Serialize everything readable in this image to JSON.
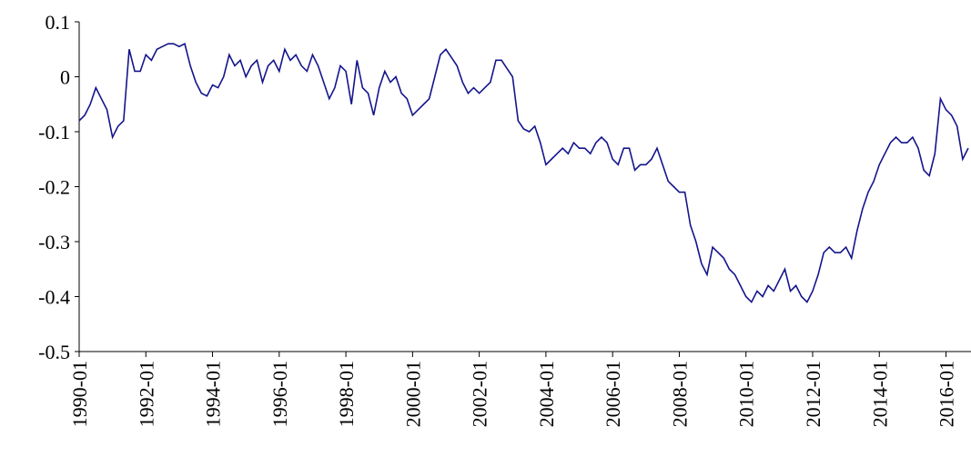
{
  "chart_data": {
    "type": "line",
    "x": [
      "1990-01",
      "1990-03",
      "1990-05",
      "1990-07",
      "1990-09",
      "1990-11",
      "1991-01",
      "1991-03",
      "1991-05",
      "1991-07",
      "1991-09",
      "1991-11",
      "1992-01",
      "1992-03",
      "1992-05",
      "1992-07",
      "1992-09",
      "1992-11",
      "1993-01",
      "1993-03",
      "1993-05",
      "1993-07",
      "1993-09",
      "1993-11",
      "1994-01",
      "1994-03",
      "1994-05",
      "1994-07",
      "1994-09",
      "1994-11",
      "1995-01",
      "1995-03",
      "1995-05",
      "1995-07",
      "1995-09",
      "1995-11",
      "1996-01",
      "1996-03",
      "1996-05",
      "1996-07",
      "1996-09",
      "1996-11",
      "1997-01",
      "1997-03",
      "1997-05",
      "1997-07",
      "1997-09",
      "1997-11",
      "1998-01",
      "1998-03",
      "1998-05",
      "1998-07",
      "1998-09",
      "1998-11",
      "1999-01",
      "1999-03",
      "1999-05",
      "1999-07",
      "1999-09",
      "1999-11",
      "2000-01",
      "2000-03",
      "2000-05",
      "2000-07",
      "2000-09",
      "2000-11",
      "2001-01",
      "2001-03",
      "2001-05",
      "2001-07",
      "2001-09",
      "2001-11",
      "2002-01",
      "2002-03",
      "2002-05",
      "2002-07",
      "2002-09",
      "2002-11",
      "2003-01",
      "2003-03",
      "2003-05",
      "2003-07",
      "2003-09",
      "2003-11",
      "2004-01",
      "2004-03",
      "2004-05",
      "2004-07",
      "2004-09",
      "2004-11",
      "2005-01",
      "2005-03",
      "2005-05",
      "2005-07",
      "2005-09",
      "2005-11",
      "2006-01",
      "2006-03",
      "2006-05",
      "2006-07",
      "2006-09",
      "2006-11",
      "2007-01",
      "2007-03",
      "2007-05",
      "2007-07",
      "2007-09",
      "2007-11",
      "2008-01",
      "2008-03",
      "2008-05",
      "2008-07",
      "2008-09",
      "2008-11",
      "2009-01",
      "2009-03",
      "2009-05",
      "2009-07",
      "2009-09",
      "2009-11",
      "2010-01",
      "2010-03",
      "2010-05",
      "2010-07",
      "2010-09",
      "2010-11",
      "2011-01",
      "2011-03",
      "2011-05",
      "2011-07",
      "2011-09",
      "2011-11",
      "2012-01",
      "2012-03",
      "2012-05",
      "2012-07",
      "2012-09",
      "2012-11",
      "2013-01",
      "2013-03",
      "2013-05",
      "2013-07",
      "2013-09",
      "2013-11",
      "2014-01",
      "2014-03",
      "2014-05",
      "2014-07",
      "2014-09",
      "2014-11",
      "2015-01",
      "2015-03",
      "2015-05",
      "2015-07",
      "2015-09",
      "2015-11",
      "2016-01",
      "2016-03",
      "2016-05",
      "2016-07",
      "2016-09"
    ],
    "series": [
      {
        "color": "#14148c",
        "values": [
          -0.08,
          -0.07,
          -0.05,
          -0.02,
          -0.04,
          -0.06,
          -0.11,
          -0.09,
          -0.08,
          0.05,
          0.01,
          0.01,
          0.04,
          0.03,
          0.05,
          0.055,
          0.06,
          0.06,
          0.055,
          0.06,
          0.02,
          -0.01,
          -0.03,
          -0.035,
          -0.015,
          -0.02,
          0.0,
          0.04,
          0.02,
          0.03,
          0.0,
          0.02,
          0.03,
          -0.01,
          0.02,
          0.03,
          0.01,
          0.05,
          0.03,
          0.04,
          0.02,
          0.01,
          0.04,
          0.02,
          -0.01,
          -0.04,
          -0.02,
          0.02,
          0.01,
          -0.05,
          0.03,
          -0.02,
          -0.03,
          -0.07,
          -0.02,
          0.01,
          -0.01,
          0.0,
          -0.03,
          -0.04,
          -0.07,
          -0.06,
          -0.05,
          -0.04,
          0.0,
          0.04,
          0.05,
          0.035,
          0.02,
          -0.01,
          -0.03,
          -0.02,
          -0.03,
          -0.02,
          -0.01,
          0.03,
          0.03,
          0.015,
          0.0,
          -0.08,
          -0.095,
          -0.1,
          -0.09,
          -0.12,
          -0.16,
          -0.15,
          -0.14,
          -0.13,
          -0.14,
          -0.12,
          -0.13,
          -0.13,
          -0.14,
          -0.12,
          -0.11,
          -0.12,
          -0.15,
          -0.16,
          -0.13,
          -0.13,
          -0.17,
          -0.16,
          -0.16,
          -0.15,
          -0.13,
          -0.16,
          -0.19,
          -0.2,
          -0.21,
          -0.21,
          -0.27,
          -0.3,
          -0.34,
          -0.36,
          -0.31,
          -0.32,
          -0.33,
          -0.35,
          -0.36,
          -0.38,
          -0.4,
          -0.41,
          -0.39,
          -0.4,
          -0.38,
          -0.39,
          -0.37,
          -0.35,
          -0.39,
          -0.38,
          -0.4,
          -0.41,
          -0.39,
          -0.36,
          -0.32,
          -0.31,
          -0.32,
          -0.32,
          -0.31,
          -0.33,
          -0.28,
          -0.24,
          -0.21,
          -0.19,
          -0.16,
          -0.14,
          -0.12,
          -0.11,
          -0.12,
          -0.12,
          -0.11,
          -0.13,
          -0.17,
          -0.18,
          -0.14,
          -0.04,
          -0.06,
          -0.07,
          -0.09,
          -0.15,
          -0.13
        ]
      }
    ],
    "xlim": [
      "1990-01",
      "2016-10"
    ],
    "xticks": [
      "1990-01",
      "1992-01",
      "1994-01",
      "1996-01",
      "1998-01",
      "2000-01",
      "2002-01",
      "2004-01",
      "2006-01",
      "2008-01",
      "2010-01",
      "2012-01",
      "2014-01",
      "2016-01"
    ],
    "ylim": [
      -0.5,
      0.1
    ],
    "yticks": [
      0.1,
      0,
      -0.1,
      -0.2,
      -0.3,
      -0.4,
      -0.5
    ],
    "grid": false
  }
}
